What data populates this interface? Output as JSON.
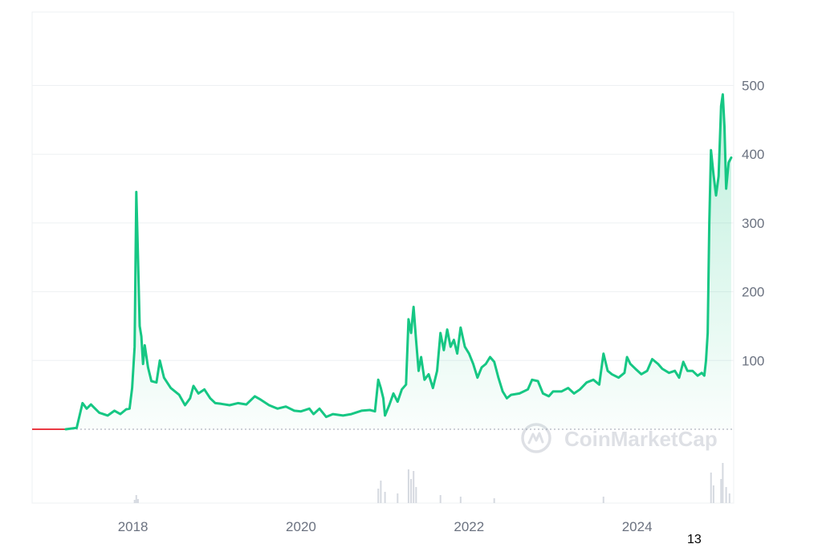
{
  "watermark": {
    "text": "CoinMarketCap",
    "icon": "coinmarketcap-logo-icon"
  },
  "page_number": "13",
  "colors": {
    "line": "#16c784",
    "baseline_before": "#ea3943",
    "grid": "#eef0f3",
    "tick_text": "#6b7280",
    "volume": "#d5d9e0"
  },
  "chart_data": {
    "type": "area",
    "title": "",
    "xlabel": "",
    "ylabel": "",
    "x_range": [
      2016.8,
      2025.15
    ],
    "ylim": [
      0,
      600
    ],
    "y_ticks": [
      100,
      200,
      300,
      400,
      500
    ],
    "y_tick_labels": [
      "100",
      "200",
      "300",
      "400",
      "500"
    ],
    "x_ticks": [
      2018,
      2020,
      2022,
      2024
    ],
    "x_tick_labels": [
      "2018",
      "2020",
      "2022",
      "2024"
    ],
    "grid": true,
    "baseline_value": 0,
    "series": [
      {
        "points": [
          [
            2016.8,
            0
          ],
          [
            2017.2,
            0
          ],
          [
            2017.33,
            2
          ],
          [
            2017.4,
            38
          ],
          [
            2017.45,
            30
          ],
          [
            2017.5,
            36
          ],
          [
            2017.55,
            30
          ],
          [
            2017.6,
            24
          ],
          [
            2017.7,
            20
          ],
          [
            2017.78,
            27
          ],
          [
            2017.85,
            22
          ],
          [
            2017.92,
            29
          ],
          [
            2017.96,
            30
          ],
          [
            2017.99,
            60
          ],
          [
            2018.02,
            120
          ],
          [
            2018.04,
            345
          ],
          [
            2018.06,
            250
          ],
          [
            2018.08,
            150
          ],
          [
            2018.1,
            135
          ],
          [
            2018.12,
            95
          ],
          [
            2018.14,
            122
          ],
          [
            2018.18,
            90
          ],
          [
            2018.22,
            70
          ],
          [
            2018.28,
            68
          ],
          [
            2018.32,
            100
          ],
          [
            2018.37,
            75
          ],
          [
            2018.45,
            60
          ],
          [
            2018.55,
            50
          ],
          [
            2018.62,
            35
          ],
          [
            2018.68,
            45
          ],
          [
            2018.72,
            63
          ],
          [
            2018.78,
            52
          ],
          [
            2018.85,
            58
          ],
          [
            2018.92,
            45
          ],
          [
            2018.98,
            38
          ],
          [
            2019.05,
            37
          ],
          [
            2019.15,
            35
          ],
          [
            2019.25,
            38
          ],
          [
            2019.35,
            36
          ],
          [
            2019.45,
            48
          ],
          [
            2019.52,
            43
          ],
          [
            2019.62,
            35
          ],
          [
            2019.72,
            30
          ],
          [
            2019.82,
            33
          ],
          [
            2019.92,
            27
          ],
          [
            2020.0,
            26
          ],
          [
            2020.1,
            30
          ],
          [
            2020.15,
            22
          ],
          [
            2020.22,
            30
          ],
          [
            2020.3,
            18
          ],
          [
            2020.38,
            22
          ],
          [
            2020.5,
            20
          ],
          [
            2020.6,
            22
          ],
          [
            2020.72,
            27
          ],
          [
            2020.82,
            28
          ],
          [
            2020.88,
            26
          ],
          [
            2020.92,
            72
          ],
          [
            2020.95,
            60
          ],
          [
            2020.98,
            45
          ],
          [
            2021.0,
            20
          ],
          [
            2021.05,
            35
          ],
          [
            2021.1,
            52
          ],
          [
            2021.15,
            40
          ],
          [
            2021.2,
            58
          ],
          [
            2021.25,
            65
          ],
          [
            2021.28,
            160
          ],
          [
            2021.31,
            140
          ],
          [
            2021.34,
            178
          ],
          [
            2021.37,
            130
          ],
          [
            2021.4,
            85
          ],
          [
            2021.43,
            105
          ],
          [
            2021.47,
            72
          ],
          [
            2021.52,
            80
          ],
          [
            2021.57,
            60
          ],
          [
            2021.62,
            85
          ],
          [
            2021.66,
            140
          ],
          [
            2021.7,
            115
          ],
          [
            2021.74,
            145
          ],
          [
            2021.78,
            120
          ],
          [
            2021.82,
            130
          ],
          [
            2021.86,
            110
          ],
          [
            2021.9,
            148
          ],
          [
            2021.95,
            120
          ],
          [
            2022.0,
            110
          ],
          [
            2022.05,
            95
          ],
          [
            2022.1,
            75
          ],
          [
            2022.15,
            90
          ],
          [
            2022.2,
            95
          ],
          [
            2022.25,
            105
          ],
          [
            2022.3,
            98
          ],
          [
            2022.35,
            75
          ],
          [
            2022.4,
            55
          ],
          [
            2022.45,
            45
          ],
          [
            2022.5,
            50
          ],
          [
            2022.6,
            52
          ],
          [
            2022.7,
            58
          ],
          [
            2022.75,
            72
          ],
          [
            2022.82,
            70
          ],
          [
            2022.88,
            52
          ],
          [
            2022.95,
            48
          ],
          [
            2023.0,
            55
          ],
          [
            2023.1,
            55
          ],
          [
            2023.18,
            60
          ],
          [
            2023.25,
            52
          ],
          [
            2023.32,
            58
          ],
          [
            2023.4,
            68
          ],
          [
            2023.48,
            72
          ],
          [
            2023.55,
            65
          ],
          [
            2023.6,
            110
          ],
          [
            2023.65,
            85
          ],
          [
            2023.7,
            80
          ],
          [
            2023.78,
            75
          ],
          [
            2023.85,
            82
          ],
          [
            2023.88,
            105
          ],
          [
            2023.92,
            95
          ],
          [
            2023.98,
            88
          ],
          [
            2024.05,
            80
          ],
          [
            2024.12,
            85
          ],
          [
            2024.18,
            102
          ],
          [
            2024.25,
            95
          ],
          [
            2024.3,
            88
          ],
          [
            2024.38,
            82
          ],
          [
            2024.45,
            85
          ],
          [
            2024.5,
            75
          ],
          [
            2024.55,
            98
          ],
          [
            2024.6,
            85
          ],
          [
            2024.66,
            85
          ],
          [
            2024.72,
            78
          ],
          [
            2024.77,
            82
          ],
          [
            2024.8,
            78
          ],
          [
            2024.82,
            100
          ],
          [
            2024.84,
            140
          ],
          [
            2024.86,
            300
          ],
          [
            2024.88,
            406
          ],
          [
            2024.91,
            370
          ],
          [
            2024.94,
            340
          ],
          [
            2024.97,
            368
          ],
          [
            2025.0,
            470
          ],
          [
            2025.02,
            487
          ],
          [
            2025.04,
            440
          ],
          [
            2025.06,
            350
          ],
          [
            2025.09,
            388
          ],
          [
            2025.12,
            395
          ]
        ]
      }
    ],
    "volume": [
      [
        2018.02,
        4
      ],
      [
        2018.04,
        10
      ],
      [
        2018.06,
        5
      ],
      [
        2020.92,
        18
      ],
      [
        2020.95,
        28
      ],
      [
        2021.0,
        14
      ],
      [
        2021.15,
        12
      ],
      [
        2021.28,
        42
      ],
      [
        2021.31,
        30
      ],
      [
        2021.34,
        40
      ],
      [
        2021.37,
        20
      ],
      [
        2021.66,
        10
      ],
      [
        2021.9,
        8
      ],
      [
        2022.3,
        6
      ],
      [
        2023.6,
        8
      ],
      [
        2024.88,
        38
      ],
      [
        2024.91,
        22
      ],
      [
        2025.0,
        30
      ],
      [
        2025.02,
        50
      ],
      [
        2025.06,
        20
      ],
      [
        2025.1,
        12
      ]
    ]
  }
}
